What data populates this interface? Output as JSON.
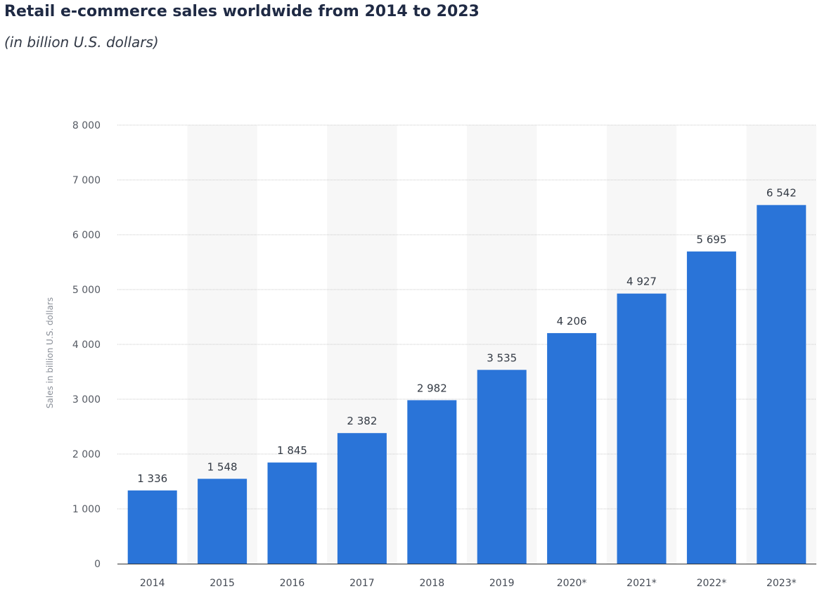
{
  "chart_data": {
    "type": "bar",
    "title": "Retail e-commerce sales worldwide from 2014 to 2023",
    "subtitle": "(in billion U.S. dollars)",
    "xlabel": "",
    "ylabel": "Sales in billion U.S. dollars",
    "categories": [
      "2014",
      "2015",
      "2016",
      "2017",
      "2018",
      "2019",
      "2020*",
      "2021*",
      "2022*",
      "2023*"
    ],
    "values": [
      1336,
      1548,
      1845,
      2382,
      2982,
      3535,
      4206,
      4927,
      5695,
      6542
    ],
    "value_labels": [
      "1 336",
      "1 548",
      "1 845",
      "2 382",
      "2 982",
      "3 535",
      "4 206",
      "4 927",
      "5 695",
      "6 542"
    ],
    "ylim": [
      0,
      8000
    ],
    "yticks": [
      0,
      1000,
      2000,
      3000,
      4000,
      5000,
      6000,
      7000,
      8000
    ],
    "ytick_labels": [
      "0",
      "1 000",
      "2 000",
      "3 000",
      "4 000",
      "5 000",
      "6 000",
      "7 000",
      "8 000"
    ],
    "grid": true,
    "legend": "none",
    "bar_color": "#2a74d8",
    "band_color": "#f7f7f7",
    "grid_color": "#c8c8c8",
    "axis_color": "#333333"
  }
}
